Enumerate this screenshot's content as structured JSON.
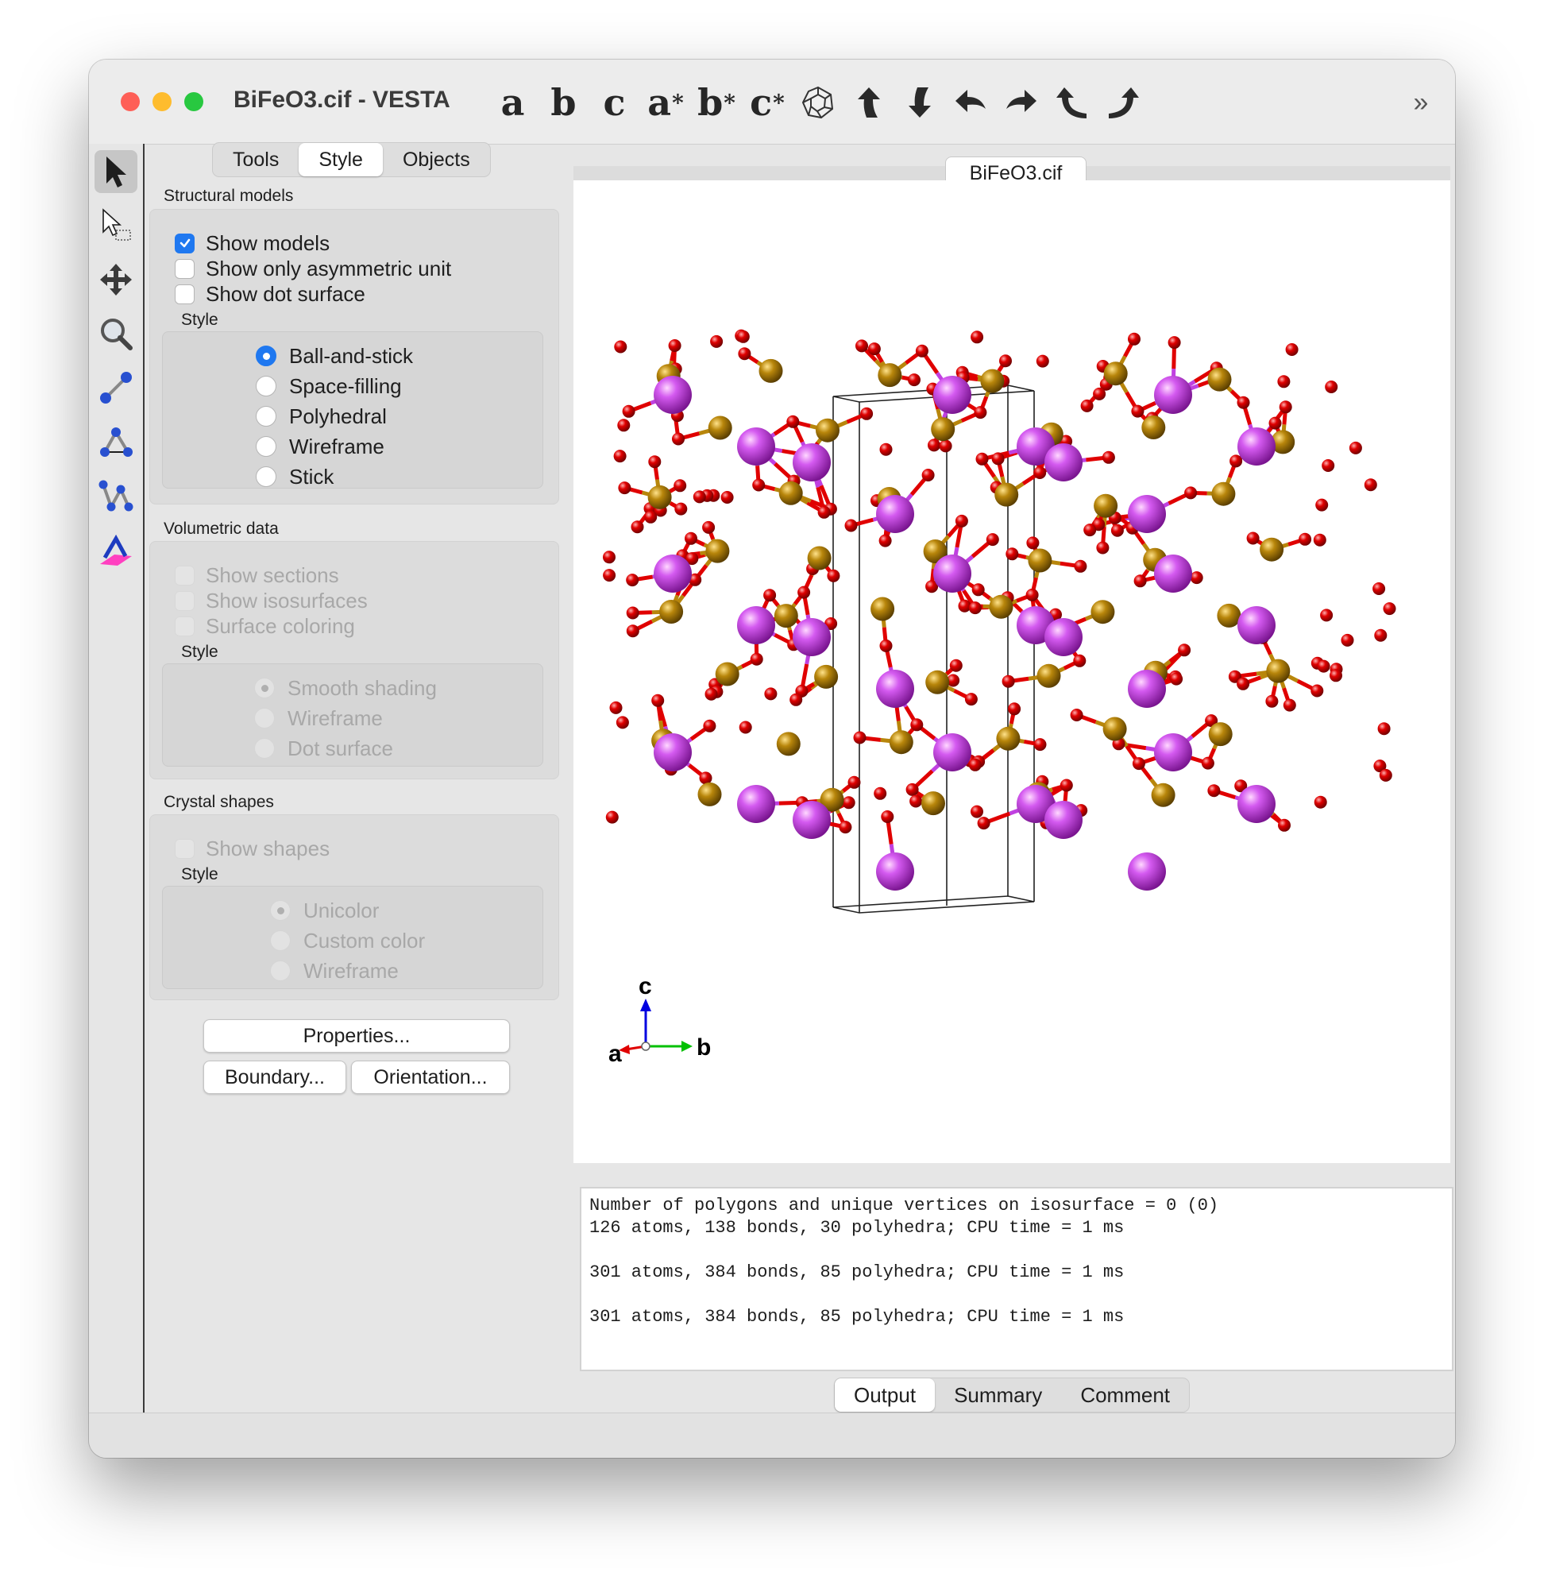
{
  "window": {
    "title": "BiFeO3.cif - VESTA",
    "traffic_lights": {
      "close": "#fe5f57",
      "minimize": "#febc2e",
      "zoom": "#28c840"
    }
  },
  "toolbar": {
    "axis_buttons": [
      {
        "main": "a",
        "sup": ""
      },
      {
        "main": "b",
        "sup": ""
      },
      {
        "main": "c",
        "sup": ""
      },
      {
        "main": "a",
        "sup": "*"
      },
      {
        "main": "b",
        "sup": "*"
      },
      {
        "main": "c",
        "sup": "*"
      }
    ],
    "icons": [
      "polyhedron-view-icon",
      "rotate-up-icon",
      "rotate-down-icon",
      "rotate-left-icon",
      "rotate-right-icon",
      "rotate-ccw-icon",
      "rotate-cw-icon"
    ],
    "overflow": "»"
  },
  "left_tools": [
    "select-arrow-icon",
    "rubberband-select-icon",
    "translate-icon",
    "magnify-icon",
    "distance-icon",
    "angle-icon",
    "dihedral-icon",
    "lattice-plane-icon"
  ],
  "panel": {
    "tabs": [
      "Tools",
      "Style",
      "Objects"
    ],
    "selected_tab": "Style",
    "structural": {
      "title": "Structural models",
      "checks": [
        {
          "label": "Show models",
          "checked": true
        },
        {
          "label": "Show only asymmetric unit",
          "checked": false
        },
        {
          "label": "Show dot surface",
          "checked": false
        }
      ],
      "style_label": "Style",
      "styles": [
        "Ball-and-stick",
        "Space-filling",
        "Polyhedral",
        "Wireframe",
        "Stick"
      ],
      "selected_style": "Ball-and-stick"
    },
    "volumetric": {
      "title": "Volumetric data",
      "checks": [
        "Show sections",
        "Show isosurfaces",
        "Surface coloring"
      ],
      "style_label": "Style",
      "styles": [
        "Smooth shading",
        "Wireframe",
        "Dot surface"
      ],
      "selected_style": "Smooth shading",
      "enabled": false
    },
    "crystal": {
      "title": "Crystal shapes",
      "checks": [
        "Show shapes"
      ],
      "style_label": "Style",
      "styles": [
        "Unicolor",
        "Custom color",
        "Wireframe"
      ],
      "selected_style": "Unicolor",
      "enabled": false
    },
    "buttons": {
      "properties": "Properties...",
      "boundary": "Boundary...",
      "orientation": "Orientation..."
    }
  },
  "document": {
    "tab": "BiFeO3.cif",
    "axes": {
      "a": "a",
      "b": "b",
      "c": "c"
    },
    "colors": {
      "bi": "#c040e0",
      "fe": "#b8860b",
      "o": "#e00000",
      "axis_a": "#e00000",
      "axis_b": "#00c000",
      "axis_c": "#0000e0"
    }
  },
  "output": {
    "lines": [
      "Number of polygons and unique vertices on isosurface = 0 (0)",
      "126 atoms, 138 bonds, 30 polyhedra; CPU time = 1 ms",
      "",
      "301 atoms, 384 bonds, 85 polyhedra; CPU time = 1 ms",
      "",
      "301 atoms, 384 bonds, 85 polyhedra; CPU time = 1 ms"
    ],
    "tabs": [
      "Output",
      "Summary",
      "Comment"
    ],
    "selected_tab": "Output"
  }
}
